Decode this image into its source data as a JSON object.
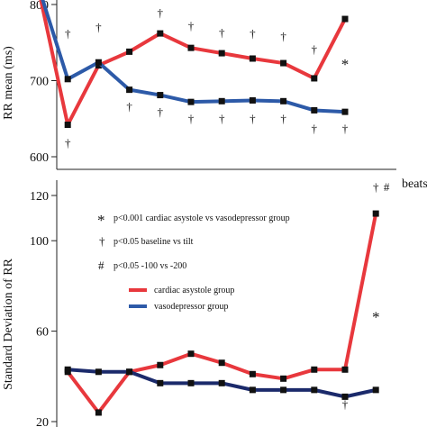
{
  "chart_data": [
    {
      "type": "line",
      "ylabel": "RR mean (ms)",
      "xlabel": "beats",
      "ylim": [
        600,
        800
      ],
      "yticks": [
        600,
        700,
        800
      ],
      "x": [
        1,
        2,
        3,
        4,
        5,
        6,
        7,
        8,
        9,
        10,
        11,
        12
      ],
      "series": [
        {
          "key": "asystole",
          "color": "#e8383d",
          "values": [
            830,
            642,
            720,
            738,
            762,
            743,
            736,
            729,
            723,
            703,
            781,
            null
          ]
        },
        {
          "key": "vasodepressor",
          "color": "#2d5aa8",
          "values": [
            830,
            702,
            724,
            688,
            681,
            672,
            673,
            674,
            673,
            661,
            659,
            null
          ]
        }
      ],
      "annotations": [
        {
          "text": "†",
          "x": 2,
          "y": 757,
          "kind": "dagger"
        },
        {
          "text": "†",
          "x": 2,
          "y": 613,
          "kind": "dagger"
        },
        {
          "text": "†",
          "x": 3,
          "y": 765,
          "kind": "dagger"
        },
        {
          "text": "†",
          "x": 5,
          "y": 784,
          "kind": "dagger"
        },
        {
          "text": "†",
          "x": 6,
          "y": 767,
          "kind": "dagger"
        },
        {
          "text": "†",
          "x": 7,
          "y": 758,
          "kind": "dagger"
        },
        {
          "text": "†",
          "x": 8,
          "y": 757,
          "kind": "dagger"
        },
        {
          "text": "†",
          "x": 9,
          "y": 753,
          "kind": "dagger"
        },
        {
          "text": "†",
          "x": 10,
          "y": 736,
          "kind": "dagger"
        },
        {
          "text": "†",
          "x": 11,
          "y": 809,
          "kind": "dagger"
        },
        {
          "text": "#",
          "x": 11.35,
          "y": 809,
          "kind": "hash"
        },
        {
          "text": "*",
          "x": 11,
          "y": 715,
          "kind": "star"
        },
        {
          "text": "†",
          "x": 4,
          "y": 661,
          "kind": "dagger"
        },
        {
          "text": "†",
          "x": 5,
          "y": 654,
          "kind": "dagger"
        },
        {
          "text": "†",
          "x": 6,
          "y": 645,
          "kind": "dagger"
        },
        {
          "text": "†",
          "x": 7,
          "y": 645,
          "kind": "dagger"
        },
        {
          "text": "†",
          "x": 8,
          "y": 645,
          "kind": "dagger"
        },
        {
          "text": "†",
          "x": 9,
          "y": 645,
          "kind": "dagger"
        },
        {
          "text": "†",
          "x": 10,
          "y": 632,
          "kind": "dagger"
        },
        {
          "text": "†",
          "x": 11,
          "y": 632,
          "kind": "dagger"
        }
      ]
    },
    {
      "type": "line",
      "ylabel": "Standard Deviation of  RR",
      "ylim": [
        20,
        120
      ],
      "yticks": [
        20,
        60,
        100,
        120
      ],
      "x": [
        1,
        2,
        3,
        4,
        5,
        6,
        7,
        8,
        9,
        10,
        11,
        12
      ],
      "series": [
        {
          "key": "asystole",
          "color": "#e8383d",
          "name": "cardiac asystole group",
          "values": [
            null,
            42,
            24,
            42,
            45,
            50,
            46,
            41,
            39,
            43,
            43,
            112
          ]
        },
        {
          "key": "vasodepressor",
          "color": "#1b2a6b",
          "name": "vasodepressor group",
          "values": [
            null,
            43,
            42,
            42,
            37,
            37,
            37,
            34,
            34,
            34,
            31,
            34
          ]
        }
      ],
      "annotations": [
        {
          "text": "†",
          "x": 11,
          "y": 26,
          "kind": "dagger"
        },
        {
          "text": "†",
          "x": 12,
          "y": 122,
          "kind": "dagger"
        },
        {
          "text": "#",
          "x": 12.35,
          "y": 122,
          "kind": "hash"
        },
        {
          "text": "*",
          "x": 12,
          "y": 64,
          "kind": "star"
        }
      ],
      "notes": [
        {
          "symbol": "*",
          "text": "p<0.001  cardiac asystole vs vasodepressor group"
        },
        {
          "symbol": "†",
          "text": "p<0.05  baseline  vs tilt"
        },
        {
          "symbol": "#",
          "text": "p<0.05   -100 vs -200"
        }
      ]
    }
  ]
}
